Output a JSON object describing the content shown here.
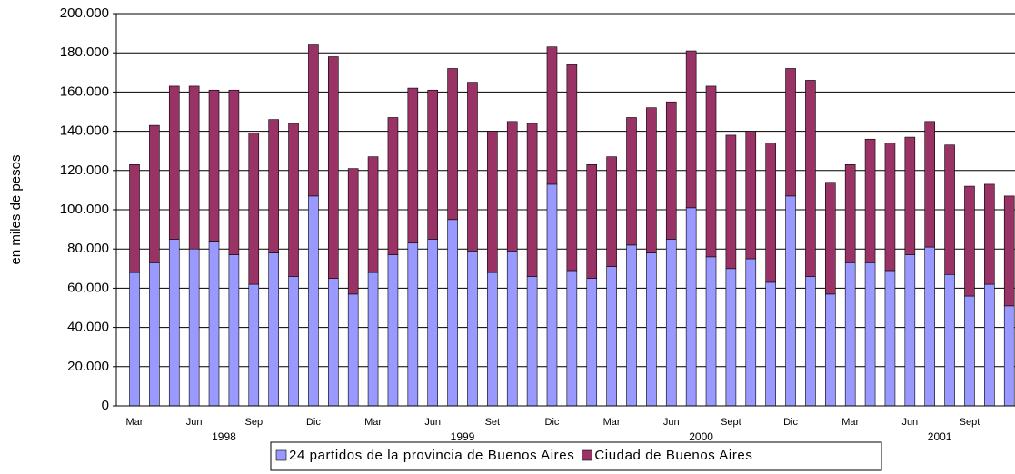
{
  "chart_data": {
    "type": "stacked-bar",
    "y_label": "en miles de pesos",
    "categories": [
      "Mar",
      null,
      null,
      "Jun",
      null,
      null,
      "Sep",
      null,
      null,
      "Dic",
      null,
      null,
      "Mar",
      null,
      null,
      "Jun",
      null,
      null,
      "Set",
      null,
      null,
      "Dic",
      null,
      null,
      "Mar",
      null,
      null,
      "Jun",
      null,
      null,
      "Sept",
      null,
      null,
      "Dic",
      null,
      null,
      "Mar",
      null,
      null,
      "Jun",
      null,
      null,
      "Sept",
      null,
      null
    ],
    "years": [
      "1998",
      "1999",
      "2000",
      "2001"
    ],
    "series": [
      {
        "name": "24 partidos de la provincia de Buenos Aires",
        "color": "#9999ff",
        "values": [
          68000,
          73000,
          85000,
          80000,
          84000,
          77000,
          62000,
          78000,
          66000,
          107000,
          65000,
          57000,
          68000,
          77000,
          83000,
          85000,
          95000,
          79000,
          68000,
          79000,
          66000,
          113000,
          69000,
          65000,
          71000,
          82000,
          78000,
          85000,
          101000,
          76000,
          70000,
          75000,
          63000,
          107000,
          66000,
          57000,
          73000,
          73000,
          69000,
          77000,
          81000,
          67000,
          56000,
          62000,
          51000
        ]
      },
      {
        "name": "Ciudad de Buenos Aires",
        "color": "#993366",
        "values": [
          55000,
          70000,
          78000,
          83000,
          77000,
          84000,
          77000,
          68000,
          78000,
          77000,
          113000,
          64000,
          59000,
          70000,
          79000,
          76000,
          77000,
          86000,
          72000,
          66000,
          78000,
          70000,
          105000,
          58000,
          56000,
          65000,
          74000,
          70000,
          80000,
          87000,
          68000,
          65000,
          71000,
          65000,
          100000,
          57000,
          50000,
          63000,
          65000,
          60000,
          64000,
          66000,
          56000,
          51000,
          56000
        ]
      }
    ],
    "ylim": [
      0,
      200000
    ],
    "yticks": [
      0,
      {
        "value": 20000,
        "label": "20.000"
      },
      {
        "value": 40000,
        "label": "40.000"
      },
      {
        "value": 60000,
        "label": "60.000"
      },
      {
        "value": 80000,
        "label": "80.000"
      },
      {
        "value": 100000,
        "label": "100.000"
      },
      {
        "value": 120000,
        "label": "120.000"
      },
      {
        "value": 140000,
        "label": "140.000"
      },
      {
        "value": 160000,
        "label": "160.000"
      },
      {
        "value": 180000,
        "label": "180.000"
      },
      {
        "value": 200000,
        "label": "200.000"
      }
    ],
    "grid": true
  }
}
